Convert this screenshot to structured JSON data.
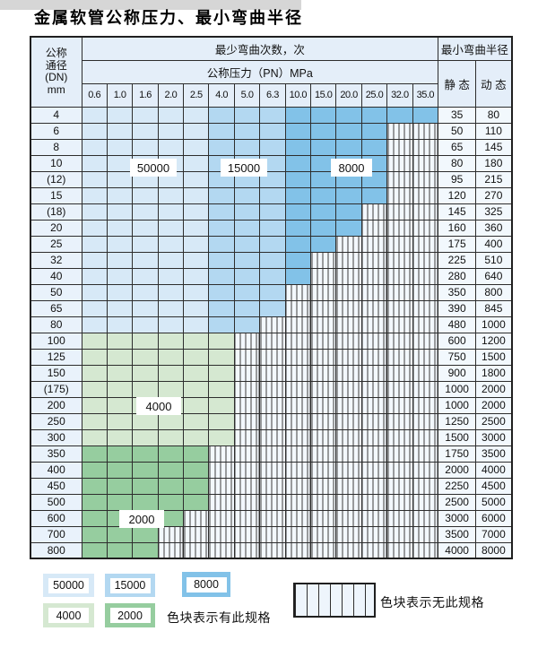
{
  "title": "金属软管公称压力、最小弯曲半径",
  "colors": {
    "50000": "#d7e9f7",
    "15000": "#b3d8f1",
    "8000": "#82c2e8",
    "4000": "#d5e8d1",
    "2000": "#96cd9f",
    "header_bg": "#e4eef9",
    "dn_cell_bg": "#e9f2fb",
    "value_cell_bg": "#f2f8fd",
    "hatch_line": "#3c3c3c",
    "grid_line": "#2d2d2d"
  },
  "table": {
    "dn_header_lines": [
      "公称",
      "通径",
      "(DN)",
      "mm"
    ],
    "bend_times_header": "最少弯曲次数，次",
    "pressure_header": "公称压力（PN）MPa",
    "radius_header": "最小弯曲半径",
    "static_label": "静 态",
    "dynamic_label": "动 态",
    "pressure_columns": [
      "0.6",
      "1.0",
      "1.6",
      "2.0",
      "2.5",
      "4.0",
      "5.0",
      "6.3",
      "10.0",
      "15.0",
      "20.0",
      "25.0",
      "32.0",
      "35.0"
    ],
    "blue_bands": [
      {
        "cycles": "50000",
        "cols": [
          "0.6",
          "1.0",
          "1.6",
          "2.0",
          "2.5"
        ]
      },
      {
        "cycles": "15000",
        "cols": [
          "4.0",
          "5.0",
          "6.3"
        ]
      },
      {
        "cycles": "8000",
        "cols": [
          "10.0",
          "15.0",
          "20.0",
          "25.0",
          "32.0",
          "35.0"
        ]
      }
    ],
    "green_bands": [
      {
        "cycles": "4000",
        "dns": [
          "100",
          "125",
          "150",
          "(175)",
          "200",
          "250",
          "300"
        ]
      },
      {
        "cycles": "2000",
        "dns": [
          "350",
          "400",
          "450",
          "500",
          "600",
          "700",
          "800"
        ]
      }
    ],
    "rows": [
      {
        "dn": "4",
        "max_pn": "35.0",
        "static": "35",
        "dynamic": "80"
      },
      {
        "dn": "6",
        "max_pn": "25.0",
        "static": "50",
        "dynamic": "110"
      },
      {
        "dn": "8",
        "max_pn": "25.0",
        "static": "65",
        "dynamic": "145"
      },
      {
        "dn": "10",
        "max_pn": "25.0",
        "static": "80",
        "dynamic": "180"
      },
      {
        "dn": "(12)",
        "max_pn": "25.0",
        "static": "95",
        "dynamic": "215"
      },
      {
        "dn": "15",
        "max_pn": "25.0",
        "static": "120",
        "dynamic": "270"
      },
      {
        "dn": "(18)",
        "max_pn": "20.0",
        "static": "145",
        "dynamic": "325"
      },
      {
        "dn": "20",
        "max_pn": "20.0",
        "static": "160",
        "dynamic": "360"
      },
      {
        "dn": "25",
        "max_pn": "15.0",
        "static": "175",
        "dynamic": "400"
      },
      {
        "dn": "32",
        "max_pn": "10.0",
        "static": "225",
        "dynamic": "510"
      },
      {
        "dn": "40",
        "max_pn": "10.0",
        "static": "280",
        "dynamic": "640"
      },
      {
        "dn": "50",
        "max_pn": "6.3",
        "static": "350",
        "dynamic": "800"
      },
      {
        "dn": "65",
        "max_pn": "6.3",
        "static": "390",
        "dynamic": "845"
      },
      {
        "dn": "80",
        "max_pn": "5.0",
        "static": "480",
        "dynamic": "1000"
      },
      {
        "dn": "100",
        "max_pn": "4.0",
        "static": "600",
        "dynamic": "1200"
      },
      {
        "dn": "125",
        "max_pn": "4.0",
        "static": "750",
        "dynamic": "1500"
      },
      {
        "dn": "150",
        "max_pn": "4.0",
        "static": "900",
        "dynamic": "1800"
      },
      {
        "dn": "(175)",
        "max_pn": "4.0",
        "static": "1000",
        "dynamic": "2000"
      },
      {
        "dn": "200",
        "max_pn": "4.0",
        "static": "1000",
        "dynamic": "2000"
      },
      {
        "dn": "250",
        "max_pn": "4.0",
        "static": "1250",
        "dynamic": "2500"
      },
      {
        "dn": "300",
        "max_pn": "4.0",
        "static": "1500",
        "dynamic": "3000"
      },
      {
        "dn": "350",
        "max_pn": "2.5",
        "static": "1750",
        "dynamic": "3500"
      },
      {
        "dn": "400",
        "max_pn": "2.5",
        "static": "2000",
        "dynamic": "4000"
      },
      {
        "dn": "450",
        "max_pn": "2.5",
        "static": "2250",
        "dynamic": "4500"
      },
      {
        "dn": "500",
        "max_pn": "2.5",
        "static": "2500",
        "dynamic": "5000"
      },
      {
        "dn": "600",
        "max_pn": "2.0",
        "static": "3000",
        "dynamic": "6000"
      },
      {
        "dn": "700",
        "max_pn": "1.6",
        "static": "3500",
        "dynamic": "7000"
      },
      {
        "dn": "800",
        "max_pn": "1.6",
        "static": "4000",
        "dynamic": "8000"
      }
    ],
    "overlay_labels": [
      {
        "text": "50000"
      },
      {
        "text": "15000"
      },
      {
        "text": "8000"
      },
      {
        "text": "4000"
      },
      {
        "text": "2000"
      }
    ]
  },
  "legend": {
    "swatches": [
      {
        "label": "50000"
      },
      {
        "label": "15000"
      },
      {
        "label": "8000"
      },
      {
        "label": "4000"
      },
      {
        "label": "2000"
      }
    ],
    "has_spec_text": "色块表示有此规格",
    "no_spec_text": "色块表示无此规格"
  }
}
